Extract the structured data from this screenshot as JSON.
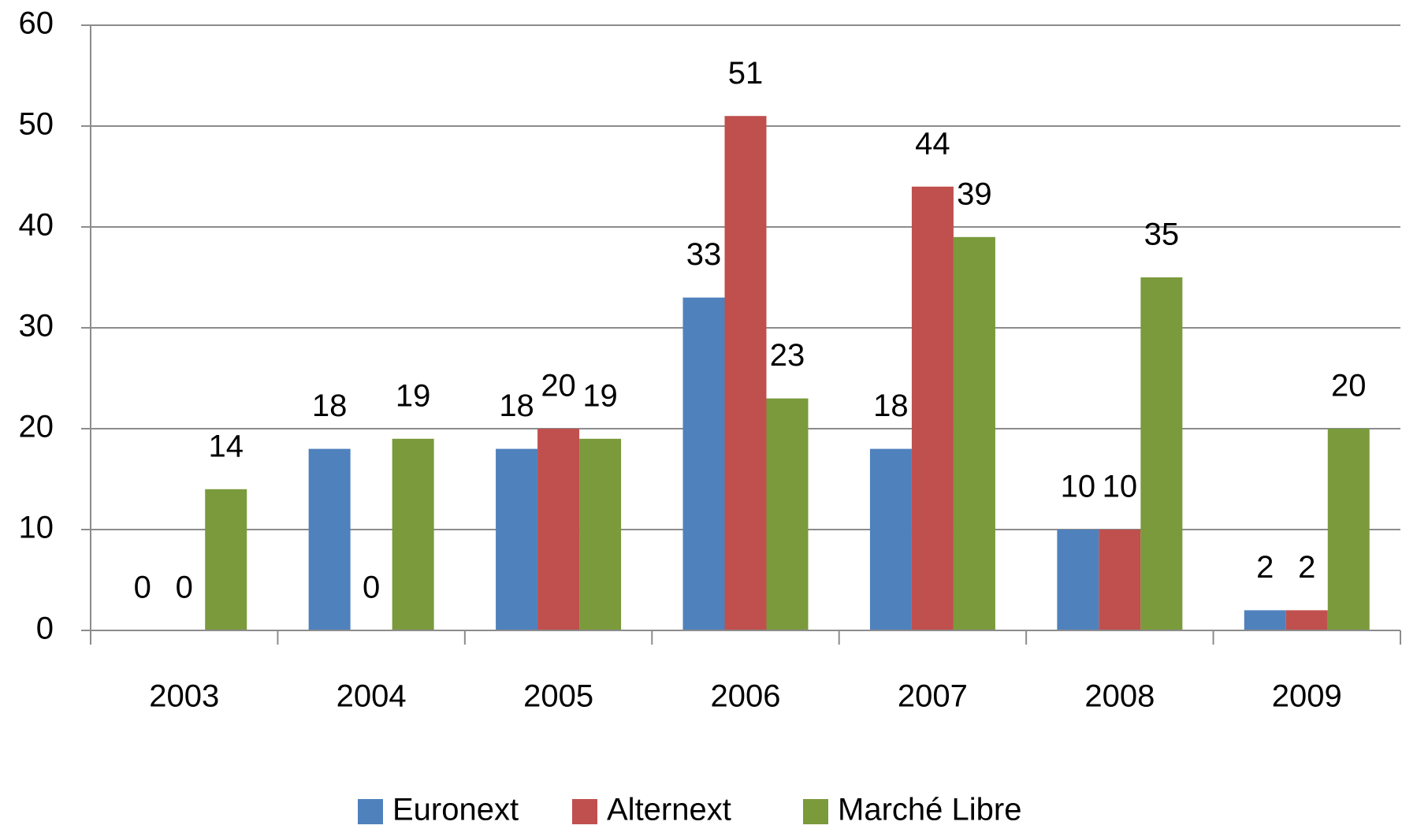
{
  "chart_data": {
    "type": "bar",
    "categories": [
      "2003",
      "2004",
      "2005",
      "2006",
      "2007",
      "2008",
      "2009"
    ],
    "series": [
      {
        "name": "Euronext",
        "color": "#4f81bd",
        "values": [
          0,
          18,
          18,
          33,
          18,
          10,
          2
        ]
      },
      {
        "name": "Alternext",
        "color": "#c0504d",
        "values": [
          0,
          0,
          20,
          51,
          44,
          10,
          2
        ]
      },
      {
        "name": "Marché Libre",
        "color": "#7a9a3c",
        "values": [
          14,
          19,
          19,
          23,
          39,
          35,
          20
        ]
      }
    ],
    "ylim": [
      0,
      60
    ],
    "yticks": [
      0,
      10,
      20,
      30,
      40,
      50,
      60
    ],
    "grid": true,
    "legend": "bottom"
  }
}
